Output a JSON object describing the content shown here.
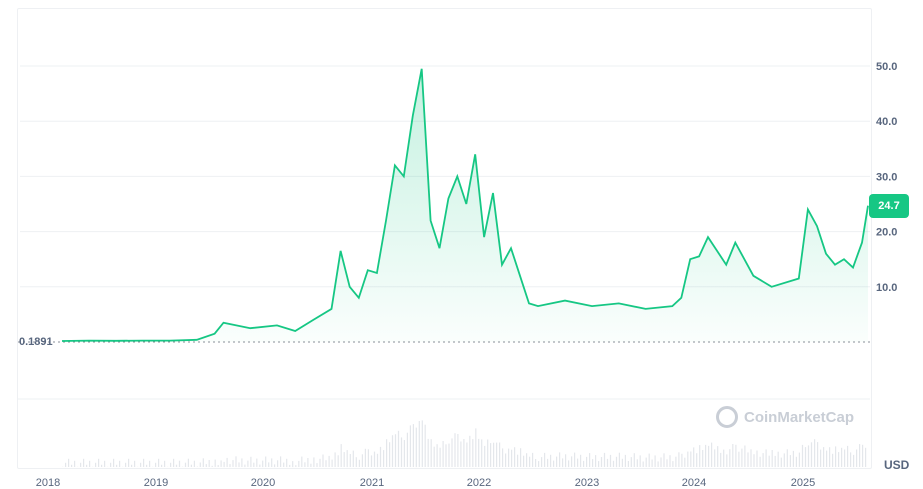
{
  "chart_data": {
    "type": "area",
    "ylim": [
      0,
      55
    ],
    "y_ticks": [
      "10.0",
      "20.0",
      "30.0",
      "40.0",
      "50.0"
    ],
    "x_ticks": [
      "2018",
      "2019",
      "2020",
      "2021",
      "2022",
      "2023",
      "2024",
      "2025"
    ],
    "start_value": "0.1891",
    "current_value": "24.7",
    "currency": "USD",
    "grid": true,
    "colors": {
      "line": "#16c784",
      "badge": "#16c784",
      "grid": "#eef0f3"
    },
    "series": [
      {
        "x": [
          "2018-01",
          "2018-04",
          "2018-07",
          "2018-10",
          "2019-01",
          "2019-04",
          "2019-06",
          "2019-07",
          "2019-10",
          "2020-01",
          "2020-03",
          "2020-05",
          "2020-07",
          "2020-08",
          "2020-09",
          "2020-10",
          "2020-11",
          "2020-12",
          "2021-01",
          "2021-02",
          "2021-03",
          "2021-04",
          "2021-05",
          "2021-06",
          "2021-07",
          "2021-08",
          "2021-09",
          "2021-10",
          "2021-11",
          "2021-12",
          "2022-01",
          "2022-02",
          "2022-03",
          "2022-04",
          "2022-05",
          "2022-06",
          "2022-09",
          "2022-12",
          "2023-03",
          "2023-06",
          "2023-09",
          "2023-10",
          "2023-11",
          "2023-12",
          "2024-01",
          "2024-03",
          "2024-04",
          "2024-06",
          "2024-08",
          "2024-11",
          "2024-12",
          "2025-01",
          "2025-02",
          "2025-03",
          "2025-04",
          "2025-05",
          "2025-06",
          "2025-07"
        ],
        "y": [
          0.19,
          0.25,
          0.22,
          0.25,
          0.25,
          0.4,
          1.5,
          3.5,
          2.5,
          3.0,
          2.0,
          4.0,
          6.0,
          16.5,
          10.0,
          8.0,
          13.0,
          12.5,
          22.0,
          32.0,
          30.0,
          41.0,
          49.5,
          22.0,
          17.0,
          26.0,
          30.0,
          25.0,
          34.0,
          19.0,
          27.0,
          14.0,
          17.0,
          12.0,
          7.0,
          6.5,
          7.5,
          6.5,
          7.0,
          6.0,
          6.5,
          8.0,
          15.0,
          15.5,
          19.0,
          14.0,
          18.0,
          12.0,
          10.0,
          11.5,
          24.0,
          21.0,
          16.0,
          14.0,
          15.0,
          13.5,
          18.0,
          24.7
        ]
      }
    ]
  }
}
